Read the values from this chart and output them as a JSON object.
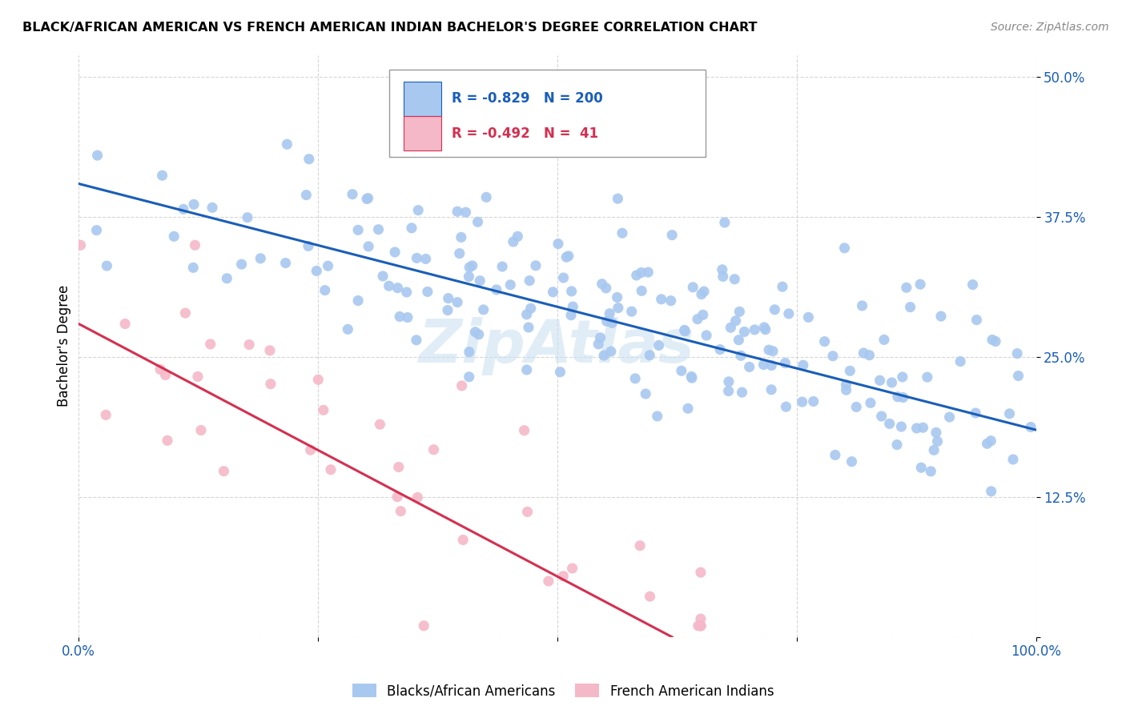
{
  "title": "BLACK/AFRICAN AMERICAN VS FRENCH AMERICAN INDIAN BACHELOR'S DEGREE CORRELATION CHART",
  "source": "Source: ZipAtlas.com",
  "ylabel": "Bachelor's Degree",
  "xlim": [
    0.0,
    1.0
  ],
  "ylim": [
    0.0,
    0.52
  ],
  "yticks": [
    0.0,
    0.125,
    0.25,
    0.375,
    0.5
  ],
  "ytick_labels": [
    "",
    "12.5%",
    "25.0%",
    "37.5%",
    "50.0%"
  ],
  "xticks": [
    0.0,
    0.25,
    0.5,
    0.75,
    1.0
  ],
  "xtick_labels": [
    "0.0%",
    "",
    "",
    "",
    "100.0%"
  ],
  "blue_R": -0.829,
  "blue_N": 200,
  "pink_R": -0.492,
  "pink_N": 41,
  "blue_color": "#a8c8f0",
  "pink_color": "#f5b8c8",
  "blue_line_color": "#1a5eb8",
  "pink_line_color": "#d43050",
  "legend_label_blue": "Blacks/African Americans",
  "legend_label_pink": "French American Indians",
  "watermark": "ZipAtlas",
  "blue_line_x": [
    0.0,
    1.0
  ],
  "blue_line_y": [
    0.405,
    0.185
  ],
  "pink_line_x": [
    0.0,
    0.62
  ],
  "pink_line_y": [
    0.28,
    0.0
  ]
}
